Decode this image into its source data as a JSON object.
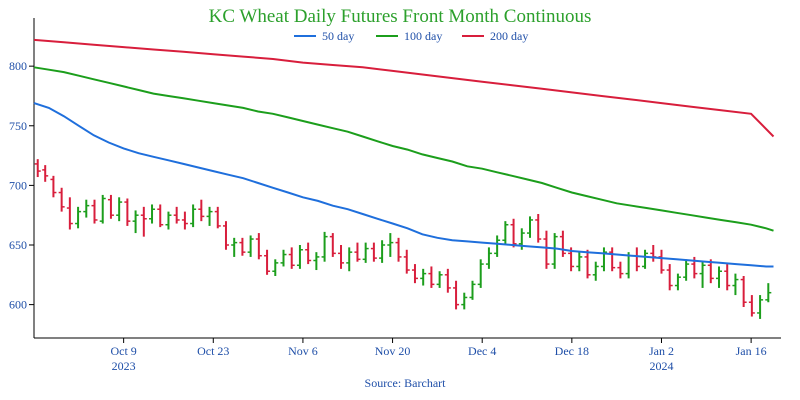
{
  "chart_data": {
    "type": "line",
    "title": "KC Wheat Daily Futures Front Month Continuous",
    "source": "Source: Barchart",
    "legend_position": "top-center",
    "grid": false,
    "ylim": [
      572,
      832
    ],
    "xlim": [
      0,
      100
    ],
    "y_ticks": [
      600,
      650,
      700,
      750,
      800
    ],
    "x_ticks": [
      {
        "x": 12,
        "label": "Oct 9",
        "year": "2023"
      },
      {
        "x": 24,
        "label": "Oct 23",
        "year": ""
      },
      {
        "x": 36,
        "label": "Nov 6",
        "year": ""
      },
      {
        "x": 48,
        "label": "Nov 20",
        "year": ""
      },
      {
        "x": 60,
        "label": "Dec 4",
        "year": ""
      },
      {
        "x": 72,
        "label": "Dec 18",
        "year": ""
      },
      {
        "x": 84,
        "label": "Jan 2",
        "year": "2024"
      },
      {
        "x": 96,
        "label": "Jan 16",
        "year": ""
      }
    ],
    "series": [
      {
        "name": "50 day",
        "color": "#1f6fdc",
        "points": [
          [
            0,
            769
          ],
          [
            2,
            765
          ],
          [
            4,
            758
          ],
          [
            6,
            750
          ],
          [
            8,
            742
          ],
          [
            10,
            736
          ],
          [
            12,
            731
          ],
          [
            14,
            727
          ],
          [
            16,
            724
          ],
          [
            18,
            721
          ],
          [
            20,
            718
          ],
          [
            22,
            715
          ],
          [
            24,
            712
          ],
          [
            26,
            709
          ],
          [
            28,
            706
          ],
          [
            30,
            702
          ],
          [
            32,
            698
          ],
          [
            34,
            694
          ],
          [
            36,
            690
          ],
          [
            38,
            687
          ],
          [
            40,
            683
          ],
          [
            42,
            680
          ],
          [
            44,
            676
          ],
          [
            46,
            672
          ],
          [
            48,
            668
          ],
          [
            50,
            664
          ],
          [
            52,
            659
          ],
          [
            54,
            656
          ],
          [
            56,
            654
          ],
          [
            58,
            653
          ],
          [
            60,
            652
          ],
          [
            62,
            651
          ],
          [
            64,
            650
          ],
          [
            66,
            649
          ],
          [
            68,
            648
          ],
          [
            70,
            647
          ],
          [
            72,
            645
          ],
          [
            74,
            644
          ],
          [
            76,
            643
          ],
          [
            78,
            642
          ],
          [
            80,
            641
          ],
          [
            82,
            640
          ],
          [
            84,
            639
          ],
          [
            86,
            638
          ],
          [
            88,
            637
          ],
          [
            90,
            636
          ],
          [
            92,
            635
          ],
          [
            94,
            634
          ],
          [
            96,
            633
          ],
          [
            98,
            632
          ],
          [
            99,
            632
          ]
        ]
      },
      {
        "name": "100 day",
        "color": "#1c9e1c",
        "points": [
          [
            0,
            799
          ],
          [
            2,
            797
          ],
          [
            4,
            795
          ],
          [
            6,
            792
          ],
          [
            8,
            789
          ],
          [
            10,
            786
          ],
          [
            12,
            783
          ],
          [
            14,
            780
          ],
          [
            16,
            777
          ],
          [
            18,
            775
          ],
          [
            20,
            773
          ],
          [
            22,
            771
          ],
          [
            24,
            769
          ],
          [
            26,
            767
          ],
          [
            28,
            765
          ],
          [
            30,
            762
          ],
          [
            32,
            760
          ],
          [
            34,
            757
          ],
          [
            36,
            754
          ],
          [
            38,
            751
          ],
          [
            40,
            748
          ],
          [
            42,
            745
          ],
          [
            44,
            741
          ],
          [
            46,
            737
          ],
          [
            48,
            733
          ],
          [
            50,
            730
          ],
          [
            52,
            726
          ],
          [
            54,
            723
          ],
          [
            56,
            720
          ],
          [
            58,
            716
          ],
          [
            60,
            714
          ],
          [
            62,
            711
          ],
          [
            64,
            708
          ],
          [
            66,
            705
          ],
          [
            68,
            702
          ],
          [
            70,
            698
          ],
          [
            72,
            694
          ],
          [
            74,
            691
          ],
          [
            76,
            688
          ],
          [
            78,
            685
          ],
          [
            80,
            683
          ],
          [
            82,
            681
          ],
          [
            84,
            679
          ],
          [
            86,
            677
          ],
          [
            88,
            675
          ],
          [
            90,
            673
          ],
          [
            92,
            671
          ],
          [
            94,
            669
          ],
          [
            96,
            667
          ],
          [
            98,
            664
          ],
          [
            99,
            662
          ]
        ]
      },
      {
        "name": "200 day",
        "color": "#d81e3c",
        "points": [
          [
            0,
            822
          ],
          [
            4,
            820
          ],
          [
            8,
            818
          ],
          [
            12,
            816
          ],
          [
            16,
            814
          ],
          [
            20,
            812
          ],
          [
            24,
            810
          ],
          [
            28,
            808
          ],
          [
            32,
            806
          ],
          [
            36,
            803
          ],
          [
            40,
            801
          ],
          [
            44,
            799
          ],
          [
            48,
            796
          ],
          [
            52,
            793
          ],
          [
            56,
            790
          ],
          [
            60,
            787
          ],
          [
            64,
            784
          ],
          [
            68,
            781
          ],
          [
            72,
            778
          ],
          [
            76,
            775
          ],
          [
            80,
            772
          ],
          [
            84,
            769
          ],
          [
            88,
            766
          ],
          [
            92,
            763
          ],
          [
            96,
            760
          ],
          [
            99,
            741
          ]
        ]
      }
    ],
    "ohlc": {
      "up_color": "#1c9e1c",
      "down_color": "#d81e3c",
      "bars": [
        [
          0.5,
          718,
          722,
          707,
          712
        ],
        [
          1.5,
          713,
          717,
          703,
          708
        ],
        [
          2.6,
          705,
          708,
          690,
          694
        ],
        [
          3.7,
          694,
          698,
          678,
          682
        ],
        [
          4.8,
          681,
          690,
          663,
          668
        ],
        [
          5.9,
          668,
          682,
          664,
          678
        ],
        [
          7.0,
          678,
          688,
          673,
          683
        ],
        [
          8.1,
          683,
          688,
          668,
          671
        ],
        [
          9.2,
          670,
          692,
          668,
          689
        ],
        [
          10.3,
          688,
          692,
          672,
          675
        ],
        [
          11.4,
          675,
          690,
          670,
          686
        ],
        [
          12.5,
          686,
          689,
          666,
          670
        ],
        [
          13.6,
          670,
          679,
          660,
          675
        ],
        [
          14.7,
          675,
          682,
          657,
          672
        ],
        [
          15.8,
          672,
          684,
          668,
          680
        ],
        [
          16.9,
          680,
          684,
          665,
          667
        ],
        [
          18.0,
          667,
          678,
          663,
          675
        ],
        [
          19.1,
          675,
          682,
          668,
          671
        ],
        [
          20.2,
          671,
          678,
          663,
          668
        ],
        [
          21.3,
          668,
          684,
          665,
          680
        ],
        [
          22.4,
          680,
          688,
          670,
          674
        ],
        [
          23.5,
          674,
          682,
          666,
          678
        ],
        [
          24.6,
          678,
          682,
          664,
          666
        ],
        [
          25.7,
          666,
          670,
          646,
          650
        ],
        [
          26.8,
          650,
          656,
          640,
          652
        ],
        [
          27.9,
          652,
          656,
          641,
          644
        ],
        [
          29.0,
          644,
          658,
          640,
          655
        ],
        [
          30.1,
          655,
          660,
          638,
          641
        ],
        [
          31.2,
          641,
          646,
          625,
          628
        ],
        [
          32.3,
          628,
          638,
          624,
          635
        ],
        [
          33.4,
          635,
          646,
          632,
          642
        ],
        [
          34.5,
          642,
          648,
          630,
          633
        ],
        [
          35.6,
          633,
          650,
          630,
          646
        ],
        [
          36.7,
          646,
          652,
          634,
          637
        ],
        [
          37.8,
          637,
          644,
          629,
          640
        ],
        [
          38.9,
          640,
          661,
          636,
          657
        ],
        [
          40.0,
          657,
          660,
          640,
          643
        ],
        [
          41.1,
          643,
          650,
          630,
          635
        ],
        [
          42.2,
          635,
          648,
          628,
          644
        ],
        [
          43.3,
          644,
          652,
          636,
          638
        ],
        [
          44.4,
          638,
          652,
          635,
          647
        ],
        [
          45.5,
          647,
          652,
          636,
          639
        ],
        [
          46.6,
          639,
          654,
          635,
          650
        ],
        [
          47.7,
          650,
          660,
          640,
          652
        ],
        [
          48.8,
          652,
          656,
          636,
          640
        ],
        [
          49.9,
          640,
          646,
          626,
          629
        ],
        [
          51.0,
          629,
          634,
          618,
          622
        ],
        [
          52.1,
          622,
          630,
          616,
          626
        ],
        [
          53.2,
          626,
          632,
          614,
          617
        ],
        [
          54.3,
          617,
          628,
          614,
          625
        ],
        [
          55.4,
          625,
          630,
          610,
          614
        ],
        [
          56.5,
          614,
          620,
          596,
          600
        ],
        [
          57.6,
          600,
          610,
          596,
          606
        ],
        [
          58.7,
          606,
          620,
          604,
          617
        ],
        [
          59.8,
          617,
          638,
          614,
          634
        ],
        [
          60.9,
          634,
          648,
          630,
          643
        ],
        [
          62.0,
          643,
          658,
          640,
          654
        ],
        [
          63.1,
          654,
          670,
          650,
          667
        ],
        [
          64.2,
          667,
          672,
          648,
          651
        ],
        [
          65.3,
          651,
          664,
          646,
          660
        ],
        [
          66.4,
          660,
          674,
          656,
          671
        ],
        [
          67.5,
          671,
          676,
          652,
          655
        ],
        [
          68.6,
          655,
          662,
          630,
          634
        ],
        [
          69.7,
          634,
          660,
          630,
          657
        ],
        [
          70.8,
          657,
          662,
          640,
          643
        ],
        [
          71.9,
          643,
          648,
          628,
          632
        ],
        [
          73.0,
          632,
          644,
          628,
          640
        ],
        [
          74.1,
          640,
          646,
          622,
          625
        ],
        [
          75.2,
          625,
          636,
          620,
          632
        ],
        [
          76.3,
          632,
          648,
          628,
          644
        ],
        [
          77.4,
          644,
          648,
          628,
          631
        ],
        [
          78.5,
          631,
          636,
          622,
          626
        ],
        [
          79.6,
          626,
          644,
          622,
          641
        ],
        [
          80.7,
          641,
          648,
          628,
          632
        ],
        [
          81.8,
          632,
          646,
          630,
          643
        ],
        [
          82.9,
          643,
          650,
          636,
          640
        ],
        [
          84.0,
          640,
          646,
          626,
          629
        ],
        [
          85.1,
          629,
          634,
          612,
          616
        ],
        [
          86.2,
          616,
          626,
          612,
          623
        ],
        [
          87.3,
          623,
          638,
          620,
          634
        ],
        [
          88.4,
          634,
          640,
          622,
          626
        ],
        [
          89.5,
          626,
          637,
          614,
          633
        ],
        [
          90.6,
          633,
          638,
          618,
          622
        ],
        [
          91.7,
          622,
          632,
          614,
          628
        ],
        [
          92.8,
          628,
          634,
          612,
          616
        ],
        [
          93.9,
          616,
          626,
          608,
          621
        ],
        [
          95.0,
          621,
          624,
          598,
          602
        ],
        [
          96.1,
          602,
          608,
          590,
          593
        ],
        [
          97.2,
          593,
          608,
          588,
          604
        ],
        [
          98.3,
          604,
          618,
          602,
          610
        ]
      ]
    }
  }
}
